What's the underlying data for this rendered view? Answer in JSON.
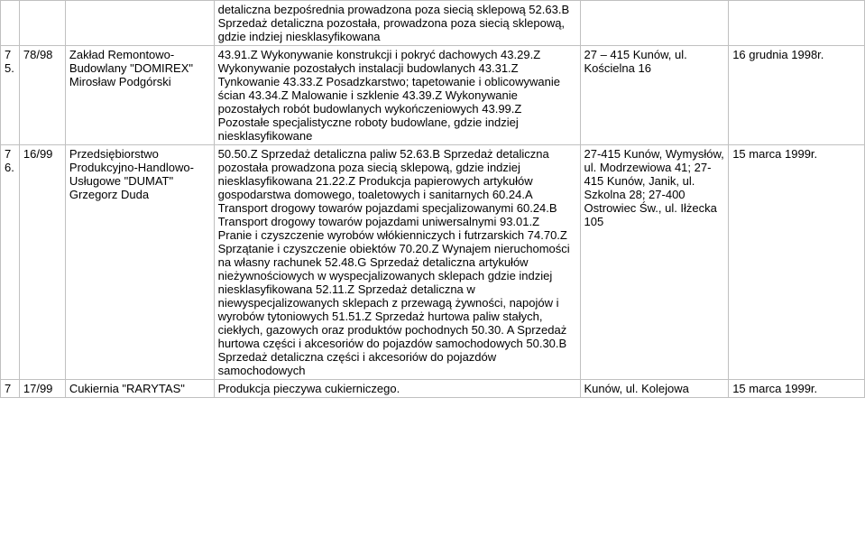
{
  "rows": [
    {
      "num": "",
      "ref": "",
      "name": "",
      "desc": "detaliczna bezpośrednia prowadzona poza siecią sklepową 52.63.B Sprzedaż detaliczna pozostała, prowadzona poza siecią sklepową, gdzie indziej niesklasyfikowana",
      "addr": "",
      "date": ""
    },
    {
      "num": "7\n5.",
      "ref": "78/98",
      "name": "Zakład Remontowo-Budowlany \"DOMIREX\" Mirosław Podgórski",
      "desc": "43.91.Z Wykonywanie konstrukcji i pokryć dachowych 43.29.Z Wykonywanie pozostałych instalacji budowlanych 43.31.Z Tynkowanie 43.33.Z Posadzkarstwo; tapetowanie i oblicowywanie ścian 43.34.Z Malowanie i szklenie 43.39.Z Wykonywanie pozostałych robót budowlanych wykończeniowych 43.99.Z Pozostałe specjalistyczne roboty budowlane, gdzie indziej niesklasyfikowane",
      "addr": "27 – 415 Kunów, ul. Kościelna 16",
      "date": "16 grudnia 1998r."
    },
    {
      "num": "7\n6.",
      "ref": "16/99",
      "name": "Przedsiębiorstwo Produkcyjno-Handlowo-Usługowe \"DUMAT\" Grzegorz Duda",
      "desc": "50.50.Z  Sprzedaż detaliczna paliw 52.63.B Sprzedaż detaliczna pozostała prowadzona poza siecią sklepową, gdzie indziej niesklasyfikowana 21.22.Z Produkcja papierowych artykułów gospodarstwa domowego, toaletowych i sanitarnych 60.24.A Transport drogowy towarów pojazdami specjalizowanymi 60.24.B Transport drogowy towarów pojazdami uniwersalnymi 93.01.Z Pranie i czyszczenie wyrobów włókienniczych i futrzarskich 74.70.Z Sprzątanie i czyszczenie obiektów 70.20.Z Wynajem nieruchomości na własny rachunek 52.48.G Sprzedaż detaliczna artykułów nieżywnościowych w wyspecjalizowanych sklepach gdzie indziej niesklasyfikowana 52.11.Z Sprzedaż detaliczna w niewyspecjalizowanych sklepach z przewagą żywności, napojów i wyrobów tytoniowych 51.51.Z Sprzedaż hurtowa paliw stałych, ciekłych, gazowych oraz produktów pochodnych 50.30. A Sprzedaż hurtowa części i akcesoriów do pojazdów samochodowych 50.30.B Sprzedaż detaliczna części i akcesoriów do pojazdów samochodowych",
      "addr": "27-415 Kunów, Wymysłów, ul. Modrzewiowa 41; 27-415 Kunów, Janik, ul. Szkolna 28; 27-400 Ostrowiec Św., ul. Iłżecka 105",
      "date": "15 marca 1999r."
    },
    {
      "num": "7",
      "ref": "17/99",
      "name": "Cukiernia \"RARYTAS\"",
      "desc": "Produkcja pieczywa cukierniczego.",
      "addr": "Kunów,  ul. Kolejowa",
      "date": "15 marca 1999r."
    }
  ]
}
